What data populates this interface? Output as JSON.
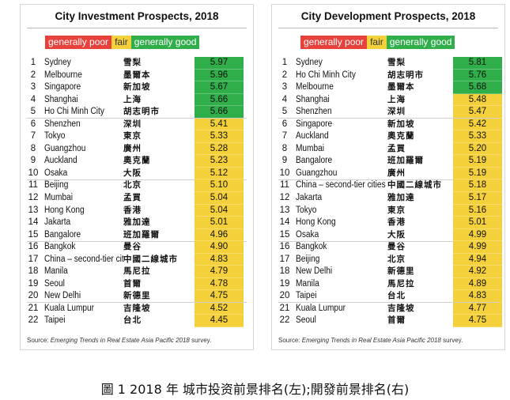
{
  "colors": {
    "good": "#2fae4a",
    "fair": "#f4d13a",
    "poor": "#e8403a"
  },
  "legend": {
    "poor": "generally poor",
    "fair": "fair",
    "good": "generally good"
  },
  "source_prefix": "Source: ",
  "source_italic": "Emerging Trends in Real Estate Asia Pacific 2018",
  "source_suffix": " survey.",
  "caption": "圖 1 2018 年  城市投资前景排名(左);開發前景排名(右)",
  "chart_data": [
    {
      "type": "table",
      "title": "City Investment Prospects, 2018",
      "rows": [
        {
          "rank": "1",
          "city": "Sydney",
          "cn": "雪梨",
          "score": "5.97",
          "rating": "good"
        },
        {
          "rank": "2",
          "city": "Melbourne",
          "cn": "墨爾本",
          "score": "5.96",
          "rating": "good"
        },
        {
          "rank": "3",
          "city": "Singapore",
          "cn": "新加坡",
          "score": "5.67",
          "rating": "good"
        },
        {
          "rank": "4",
          "city": "Shanghai",
          "cn": "上海",
          "score": "5.66",
          "rating": "good"
        },
        {
          "rank": "5",
          "city": "Ho Chi Minh City",
          "cn": "胡志明市",
          "score": "5.66",
          "rating": "good"
        },
        {
          "rank": "6",
          "city": "Shenzhen",
          "cn": "深圳",
          "score": "5.41",
          "rating": "fair"
        },
        {
          "rank": "7",
          "city": "Tokyo",
          "cn": "東京",
          "score": "5.33",
          "rating": "fair"
        },
        {
          "rank": "8",
          "city": "Guangzhou",
          "cn": "廣州",
          "score": "5.28",
          "rating": "fair"
        },
        {
          "rank": "9",
          "city": "Auckland",
          "cn": "奧克蘭",
          "score": "5.23",
          "rating": "fair"
        },
        {
          "rank": "10",
          "city": "Osaka",
          "cn": "大阪",
          "score": "5.12",
          "rating": "fair"
        },
        {
          "rank": "11",
          "city": "Beijing",
          "cn": "北京",
          "score": "5.10",
          "rating": "fair"
        },
        {
          "rank": "12",
          "city": "Mumbai",
          "cn": "孟買",
          "score": "5.04",
          "rating": "fair"
        },
        {
          "rank": "13",
          "city": "Hong Kong",
          "cn": "香港",
          "score": "5.04",
          "rating": "fair"
        },
        {
          "rank": "14",
          "city": "Jakarta",
          "cn": "雅加達",
          "score": "5.01",
          "rating": "fair"
        },
        {
          "rank": "15",
          "city": "Bangalore",
          "cn": "班加羅爾",
          "score": "4.96",
          "rating": "fair"
        },
        {
          "rank": "16",
          "city": "Bangkok",
          "cn": "曼谷",
          "score": "4.90",
          "rating": "fair"
        },
        {
          "rank": "17",
          "city": "China – second-tier cit",
          "cn": "中國二線城市",
          "score": "4.83",
          "rating": "fair"
        },
        {
          "rank": "18",
          "city": "Manila",
          "cn": "馬尼拉",
          "score": "4.79",
          "rating": "fair"
        },
        {
          "rank": "19",
          "city": "Seoul",
          "cn": "首爾",
          "score": "4.78",
          "rating": "fair"
        },
        {
          "rank": "20",
          "city": "New Delhi",
          "cn": "新德里",
          "score": "4.75",
          "rating": "fair"
        },
        {
          "rank": "21",
          "city": "Kuala Lumpur",
          "cn": "吉隆坡",
          "score": "4.52",
          "rating": "fair"
        },
        {
          "rank": "22",
          "city": "Taipei",
          "cn": "台北",
          "score": "4.45",
          "rating": "fair"
        }
      ]
    },
    {
      "type": "table",
      "title": "City Development Prospects, 2018",
      "rows": [
        {
          "rank": "1",
          "city": "Sydney",
          "cn": "雪梨",
          "score": "5.81",
          "rating": "good"
        },
        {
          "rank": "2",
          "city": "Ho Chi Minh City",
          "cn": "胡志明市",
          "score": "5.76",
          "rating": "good"
        },
        {
          "rank": "3",
          "city": "Melbourne",
          "cn": "墨爾本",
          "score": "5.68",
          "rating": "good"
        },
        {
          "rank": "4",
          "city": "Shanghai",
          "cn": "上海",
          "score": "5.48",
          "rating": "fair"
        },
        {
          "rank": "5",
          "city": "Shenzhen",
          "cn": "深圳",
          "score": "5.47",
          "rating": "fair"
        },
        {
          "rank": "6",
          "city": "Singapore",
          "cn": "新加坡",
          "score": "5.42",
          "rating": "fair"
        },
        {
          "rank": "7",
          "city": "Auckland",
          "cn": "奧克蘭",
          "score": "5.33",
          "rating": "fair"
        },
        {
          "rank": "8",
          "city": "Mumbai",
          "cn": "孟買",
          "score": "5.20",
          "rating": "fair"
        },
        {
          "rank": "9",
          "city": "Bangalore",
          "cn": "班加羅爾",
          "score": "5.19",
          "rating": "fair"
        },
        {
          "rank": "10",
          "city": "Guangzhou",
          "cn": "廣州",
          "score": "5.19",
          "rating": "fair"
        },
        {
          "rank": "11",
          "city": "China – second-tier cities",
          "cn": "中國二線城市",
          "score": "5.18",
          "rating": "fair"
        },
        {
          "rank": "12",
          "city": "Jakarta",
          "cn": "雅加達",
          "score": "5.17",
          "rating": "fair"
        },
        {
          "rank": "13",
          "city": "Tokyo",
          "cn": "東京",
          "score": "5.16",
          "rating": "fair"
        },
        {
          "rank": "14",
          "city": "Hong Kong",
          "cn": "香港",
          "score": "5.01",
          "rating": "fair"
        },
        {
          "rank": "15",
          "city": "Osaka",
          "cn": "大阪",
          "score": "4.99",
          "rating": "fair"
        },
        {
          "rank": "16",
          "city": "Bangkok",
          "cn": "曼谷",
          "score": "4.99",
          "rating": "fair"
        },
        {
          "rank": "17",
          "city": "Beijing",
          "cn": "北京",
          "score": "4.94",
          "rating": "fair"
        },
        {
          "rank": "18",
          "city": "New Delhi",
          "cn": "新德里",
          "score": "4.92",
          "rating": "fair"
        },
        {
          "rank": "19",
          "city": "Manila",
          "cn": "馬尼拉",
          "score": "4.89",
          "rating": "fair"
        },
        {
          "rank": "20",
          "city": "Taipei",
          "cn": "台北",
          "score": "4.83",
          "rating": "fair"
        },
        {
          "rank": "21",
          "city": "Kuala Lumpur",
          "cn": "吉隆坡",
          "score": "4.77",
          "rating": "fair"
        },
        {
          "rank": "22",
          "city": "Seoul",
          "cn": "首爾",
          "score": "4.75",
          "rating": "fair"
        }
      ]
    }
  ]
}
